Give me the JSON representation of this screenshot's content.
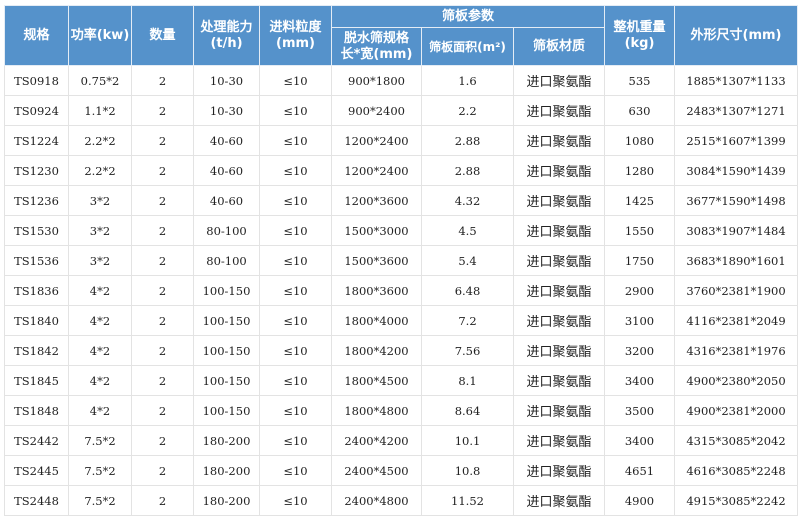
{
  "colors": {
    "header_bg": "#5592cb",
    "header_text": "#ffffff",
    "border": "#e3e3e3"
  },
  "header": {
    "model": "规格",
    "power": "功率(kw)",
    "quantity": "数量",
    "capacity": "处理能力\n(t/h)",
    "feed_size": "进料粒度\n(mm)",
    "screen_group": "筛板参数",
    "screen_spec": "脱水筛规格\n长*宽(mm)",
    "screen_area": "筛板面积(m²)",
    "screen_material": "筛板材质",
    "weight": "整机重量\n(kg)",
    "dimensions": "外形尺寸(mm)"
  },
  "rows": [
    [
      "TS0918",
      "0.75*2",
      "2",
      "10-30",
      "≤10",
      "900*1800",
      "1.6",
      "进口聚氨酯",
      "535",
      "1885*1307*1133"
    ],
    [
      "TS0924",
      "1.1*2",
      "2",
      "10-30",
      "≤10",
      "900*2400",
      "2.2",
      "进口聚氨酯",
      "630",
      "2483*1307*1271"
    ],
    [
      "TS1224",
      "2.2*2",
      "2",
      "40-60",
      "≤10",
      "1200*2400",
      "2.88",
      "进口聚氨酯",
      "1080",
      "2515*1607*1399"
    ],
    [
      "TS1230",
      "2.2*2",
      "2",
      "40-60",
      "≤10",
      "1200*2400",
      "2.88",
      "进口聚氨酯",
      "1280",
      "3084*1590*1439"
    ],
    [
      "TS1236",
      "3*2",
      "2",
      "40-60",
      "≤10",
      "1200*3600",
      "4.32",
      "进口聚氨酯",
      "1425",
      "3677*1590*1498"
    ],
    [
      "TS1530",
      "3*2",
      "2",
      "80-100",
      "≤10",
      "1500*3000",
      "4.5",
      "进口聚氨酯",
      "1550",
      "3083*1907*1484"
    ],
    [
      "TS1536",
      "3*2",
      "2",
      "80-100",
      "≤10",
      "1500*3600",
      "5.4",
      "进口聚氨酯",
      "1750",
      "3683*1890*1601"
    ],
    [
      "TS1836",
      "4*2",
      "2",
      "100-150",
      "≤10",
      "1800*3600",
      "6.48",
      "进口聚氨酯",
      "2900",
      "3760*2381*1900"
    ],
    [
      "TS1840",
      "4*2",
      "2",
      "100-150",
      "≤10",
      "1800*4000",
      "7.2",
      "进口聚氨酯",
      "3100",
      "4116*2381*2049"
    ],
    [
      "TS1842",
      "4*2",
      "2",
      "100-150",
      "≤10",
      "1800*4200",
      "7.56",
      "进口聚氨酯",
      "3200",
      "4316*2381*1976"
    ],
    [
      "TS1845",
      "4*2",
      "2",
      "100-150",
      "≤10",
      "1800*4500",
      "8.1",
      "进口聚氨酯",
      "3400",
      "4900*2380*2050"
    ],
    [
      "TS1848",
      "4*2",
      "2",
      "100-150",
      "≤10",
      "1800*4800",
      "8.64",
      "进口聚氨酯",
      "3500",
      "4900*2381*2000"
    ],
    [
      "TS2442",
      "7.5*2",
      "2",
      "180-200",
      "≤10",
      "2400*4200",
      "10.1",
      "进口聚氨酯",
      "3400",
      "4315*3085*2042"
    ],
    [
      "TS2445",
      "7.5*2",
      "2",
      "180-200",
      "≤10",
      "2400*4500",
      "10.8",
      "进口聚氨酯",
      "4651",
      "4616*3085*2248"
    ],
    [
      "TS2448",
      "7.5*2",
      "2",
      "180-200",
      "≤10",
      "2400*4800",
      "11.52",
      "进口聚氨酯",
      "4900",
      "4915*3085*2242"
    ]
  ]
}
